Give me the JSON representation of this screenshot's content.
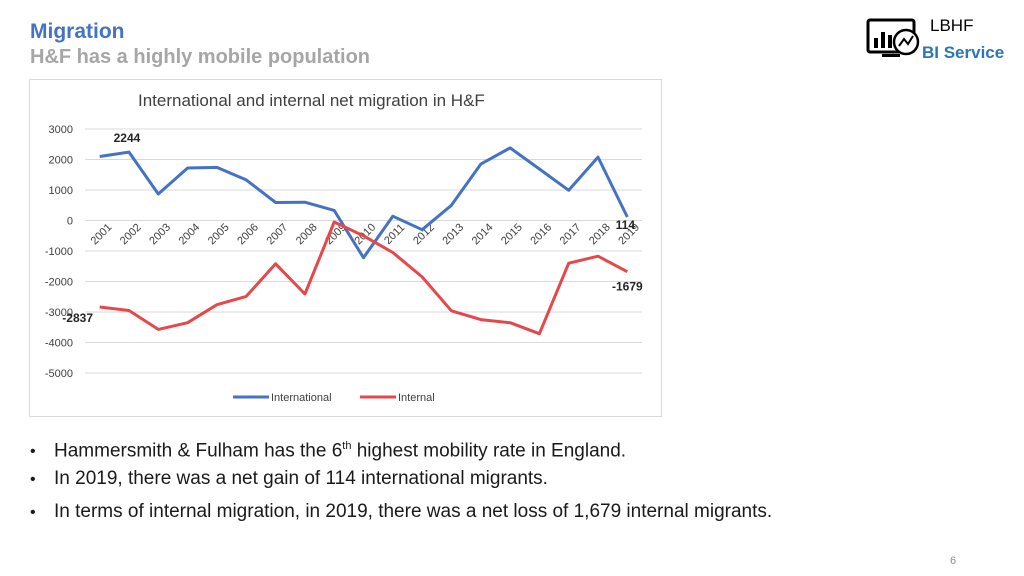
{
  "slide": {
    "title": "Migration",
    "subtitle": "H&F has a highly mobile population",
    "page_number": "6"
  },
  "logo": {
    "line1": "LBHF",
    "line2": "BI Service",
    "icon": "monitor-chart-icon"
  },
  "bullets": [
    {
      "pre": "Hammersmith & Fulham has the 6",
      "sup": "th",
      "post": " highest mobility rate in England."
    },
    {
      "pre": "In 2019, there was a net gain of 114 international migrants.",
      "sup": "",
      "post": ""
    },
    {
      "pre": "In terms of internal migration, in 2019, there was a net loss of 1,679 internal migrants.",
      "sup": "",
      "post": ""
    }
  ],
  "colors": {
    "international": "#4472c4",
    "internal": "#e8474a",
    "title_blue": "#4472c4",
    "subtitle_grey": "#a6a6a6"
  },
  "chart_data": {
    "type": "line",
    "title": "International and internal net migration in H&F",
    "xlabel": "",
    "ylabel": "",
    "x": [
      "2001",
      "2002",
      "2003",
      "2004",
      "2005",
      "2006",
      "2007",
      "2008",
      "2009",
      "2010",
      "2011",
      "2012",
      "2013",
      "2014",
      "2015",
      "2016",
      "2017",
      "2018",
      "2019"
    ],
    "y_ticks": [
      "3000",
      "2000",
      "1000",
      "0",
      "-1000",
      "-2000",
      "-3000",
      "-4000",
      "-5000"
    ],
    "ylim": [
      -5000,
      3000
    ],
    "grid": true,
    "legend": "bottom",
    "series": [
      {
        "name": "International",
        "values": [
          2100,
          2244,
          870,
          1720,
          1740,
          1330,
          590,
          600,
          330,
          -1220,
          140,
          -300,
          500,
          1850,
          2380,
          1690,
          990,
          2080,
          114
        ]
      },
      {
        "name": "Internal",
        "values": [
          -2837,
          -2950,
          -3570,
          -3350,
          -2760,
          -2490,
          -1420,
          -2410,
          -50,
          -500,
          -1050,
          -1850,
          -2960,
          -3250,
          -3350,
          -3710,
          -1400,
          -1170,
          -1679
        ]
      }
    ],
    "annotations": [
      {
        "series": 0,
        "index": 1,
        "text": "2244"
      },
      {
        "series": 1,
        "index": 0,
        "text": "-2837"
      },
      {
        "series": 0,
        "index": 18,
        "text": "114"
      },
      {
        "series": 1,
        "index": 18,
        "text": "-1679"
      }
    ]
  }
}
